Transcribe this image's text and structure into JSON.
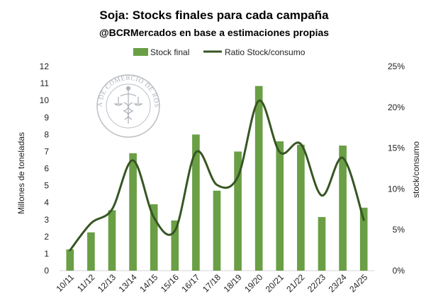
{
  "chart_data": {
    "type": "bar+line",
    "title": "Soja: Stocks finales para cada campaña",
    "subtitle": "@BCRMercados en base a estimaciones propias",
    "categories": [
      "10/11",
      "11/12",
      "12/13",
      "13/14",
      "14/15",
      "15/16",
      "16/17",
      "17/18",
      "18/19",
      "19/20",
      "20/21",
      "21/22",
      "22/23",
      "23/24",
      "24/25"
    ],
    "series": [
      {
        "name": "Stock final",
        "type": "bar",
        "axis": "left",
        "color": "#6a9f45",
        "values": [
          1.25,
          2.25,
          3.55,
          6.9,
          3.9,
          2.95,
          8.0,
          4.7,
          7.0,
          10.85,
          7.6,
          7.4,
          3.15,
          7.35,
          3.7
        ]
      },
      {
        "name": "Ratio Stock/consumo",
        "type": "line",
        "axis": "right",
        "color": "#375623",
        "smooth": true,
        "values": [
          2.5,
          5.8,
          7.5,
          13.5,
          6.5,
          4.9,
          14.5,
          10.5,
          11.5,
          20.8,
          14.5,
          15.5,
          9.2,
          13.8,
          6.2
        ]
      }
    ],
    "ylabel": "Millones de toneladas",
    "ylim": [
      0,
      12
    ],
    "yticks": [
      "0",
      "1",
      "2",
      "3",
      "4",
      "5",
      "6",
      "7",
      "8",
      "9",
      "10",
      "11",
      "12"
    ],
    "y2label": "stock/consumo",
    "y2lim": [
      0,
      25
    ],
    "y2ticks": [
      "0%",
      "5%",
      "10%",
      "15%",
      "20%",
      "25%"
    ],
    "legend_position": "top",
    "grid": false,
    "watermark": "BOLSA DE COMERCIO DE ROSARIO"
  }
}
